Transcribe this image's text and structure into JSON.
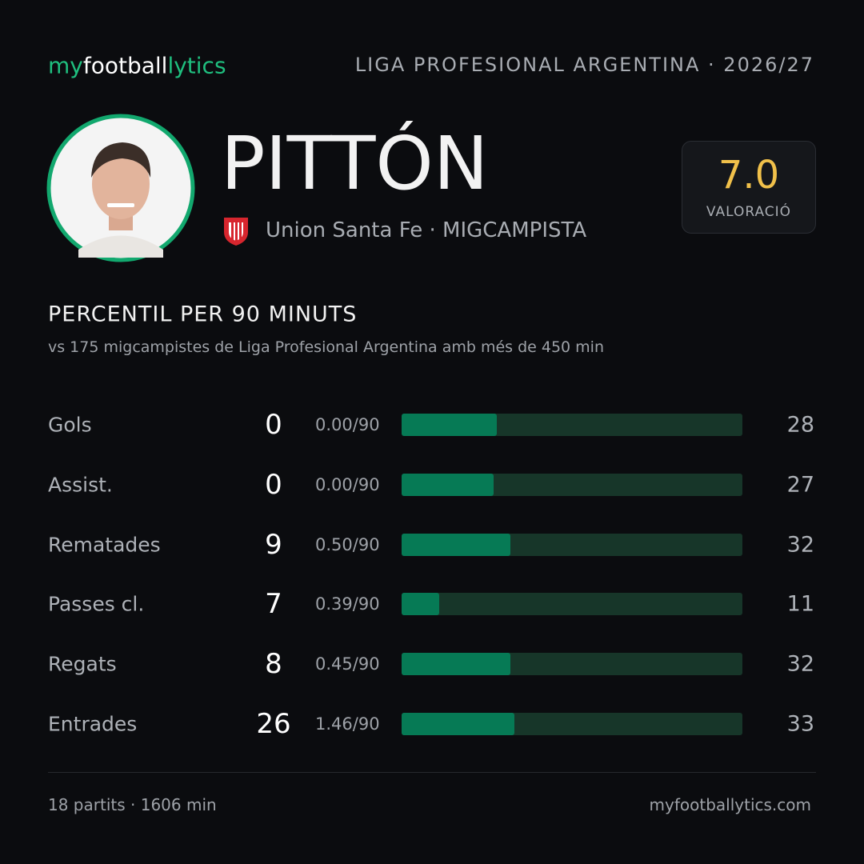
{
  "header": {
    "logo": [
      "my",
      "football",
      "lytics"
    ],
    "league": "LIGA PROFESIONAL ARGENTINA · 2026/27"
  },
  "player": {
    "name": "PITTÓN",
    "club_role": "Union Santa Fe · MIGCAMPISTA",
    "rating": "7.0",
    "rating_label": "VALORACIÓ"
  },
  "section": {
    "title": "PERCENTIL PER 90 MINUTS",
    "subtitle": "vs 175 migcampistes de Liga Profesional Argentina amb més de 450 min"
  },
  "stats": {
    "xlim": [
      0,
      100
    ],
    "rows": [
      {
        "label": "Gols",
        "total": 0,
        "per90": "0.00/90",
        "percentile": 28
      },
      {
        "label": "Assist.",
        "total": 0,
        "per90": "0.00/90",
        "percentile": 27
      },
      {
        "label": "Rematades",
        "total": 9,
        "per90": "0.50/90",
        "percentile": 32
      },
      {
        "label": "Passes cl.",
        "total": 7,
        "per90": "0.39/90",
        "percentile": 11
      },
      {
        "label": "Regats",
        "total": 8,
        "per90": "0.45/90",
        "percentile": 32
      },
      {
        "label": "Entrades",
        "total": 26,
        "per90": "1.46/90",
        "percentile": 33
      }
    ]
  },
  "footer": {
    "summary": "18 partits · 1606 min",
    "site": "myfootballytics.com"
  }
}
